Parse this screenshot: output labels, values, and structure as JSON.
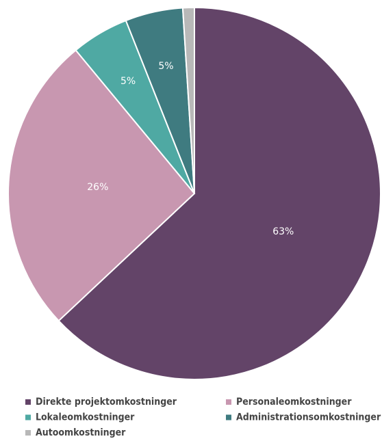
{
  "chart_data": {
    "type": "pie",
    "categories": [
      "Direkte projektomkostninger",
      "Personaleomkostninger",
      "Lokaleomkostninger",
      "Administrationsomkostninger",
      "Autoomkostninger"
    ],
    "values": [
      63,
      26,
      5,
      5,
      1
    ],
    "value_labels": [
      "63%",
      "26%",
      "5%",
      "5%",
      null
    ],
    "colors": [
      "#634468",
      "#c897b0",
      "#4fa9a3",
      "#3f7b80",
      "#b8b8b8"
    ],
    "legend": "bottom"
  }
}
